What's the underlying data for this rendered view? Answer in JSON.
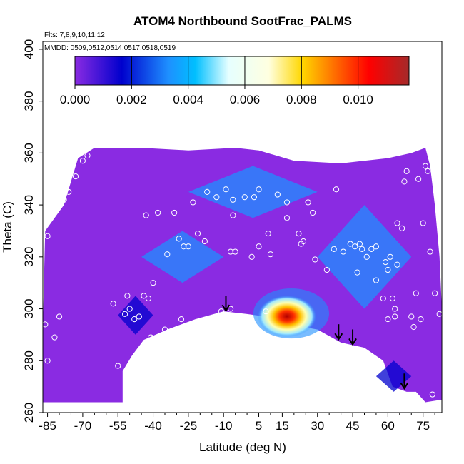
{
  "chart_data": {
    "type": "heatmap",
    "title": "ATOM4 Northbound SootFrac_PALMS",
    "flights_label": "Flts: 7,8,9,10,11,12",
    "dates_label": "MMDD: 0509,0512,0514,0517,0518,0519",
    "xlabel": "Latitude (deg N)",
    "ylabel": "Theta (C)",
    "xlim": [
      -87,
      83
    ],
    "ylim": [
      260,
      403
    ],
    "x_ticks": [
      "-85",
      "-70",
      "-55",
      "-40",
      "-25",
      "-10",
      "5",
      "15",
      "30",
      "45",
      "60",
      "75"
    ],
    "x_tick_values": [
      -85,
      -70,
      -55,
      -40,
      -25,
      -10,
      5,
      15,
      30,
      45,
      60,
      75
    ],
    "y_ticks": [
      "260",
      "280",
      "300",
      "320",
      "340",
      "360",
      "380",
      "400"
    ],
    "y_tick_values": [
      260,
      280,
      300,
      320,
      340,
      360,
      380,
      400
    ],
    "colorbar": {
      "min": 0.0,
      "max": 0.0118,
      "tick_labels": [
        "0.000",
        "0.002",
        "0.004",
        "0.006",
        "0.008",
        "0.010"
      ],
      "tick_values": [
        0.0,
        0.002,
        0.004,
        0.006,
        0.008,
        0.01
      ],
      "colors": [
        "#8a2be2",
        "#0000cd",
        "#1e90ff",
        "#00bfff",
        "#e0ffff",
        "#ffffe0",
        "#ffd700",
        "#ff4500",
        "#ff0000",
        "#a52a2a"
      ]
    },
    "tropopause_arrows_lat": [
      -9,
      39,
      45,
      67
    ],
    "tropopause_arrows_theta": [
      299,
      288,
      286,
      269
    ],
    "background_value": 0.0,
    "blue_patches": [
      {
        "lat": [
          -45,
          -10
        ],
        "theta": [
          310,
          330
        ],
        "value": 0.003
      },
      {
        "lat": [
          -25,
          30
        ],
        "theta": [
          335,
          355
        ],
        "value": 0.0025
      },
      {
        "lat": [
          -55,
          -40
        ],
        "theta": [
          290,
          305
        ],
        "value": 0.0015
      },
      {
        "lat": [
          30,
          70
        ],
        "theta": [
          300,
          340
        ],
        "value": 0.002
      },
      {
        "lat": [
          55,
          70
        ],
        "theta": [
          268,
          280
        ],
        "value": 0.0015
      }
    ],
    "hotspot": {
      "lat": [
        5,
        30
      ],
      "theta": [
        294,
        310
      ],
      "peak_value": 0.011,
      "peak_lat": 17,
      "peak_theta": 296
    },
    "samples": [
      {
        "lat": -86,
        "theta": 294
      },
      {
        "lat": -85,
        "theta": 280
      },
      {
        "lat": -85,
        "theta": 328
      },
      {
        "lat": -82,
        "theta": 289
      },
      {
        "lat": -80,
        "theta": 297
      },
      {
        "lat": -78,
        "theta": 342
      },
      {
        "lat": -76,
        "theta": 345
      },
      {
        "lat": -73,
        "theta": 351
      },
      {
        "lat": -70,
        "theta": 357
      },
      {
        "lat": -68,
        "theta": 359
      },
      {
        "lat": -57,
        "theta": 302
      },
      {
        "lat": -55,
        "theta": 278
      },
      {
        "lat": -52,
        "theta": 298
      },
      {
        "lat": -51,
        "theta": 305
      },
      {
        "lat": -50,
        "theta": 300
      },
      {
        "lat": -48,
        "theta": 296
      },
      {
        "lat": -47,
        "theta": 276
      },
      {
        "lat": -46,
        "theta": 297
      },
      {
        "lat": -45,
        "theta": 280
      },
      {
        "lat": -44,
        "theta": 305
      },
      {
        "lat": -43,
        "theta": 336
      },
      {
        "lat": -42,
        "theta": 304
      },
      {
        "lat": -41,
        "theta": 289
      },
      {
        "lat": -40,
        "theta": 310
      },
      {
        "lat": -38,
        "theta": 337
      },
      {
        "lat": -35,
        "theta": 292
      },
      {
        "lat": -34,
        "theta": 321
      },
      {
        "lat": -31,
        "theta": 337
      },
      {
        "lat": -29,
        "theta": 327
      },
      {
        "lat": -28,
        "theta": 296
      },
      {
        "lat": -27,
        "theta": 324
      },
      {
        "lat": -25,
        "theta": 324
      },
      {
        "lat": -23,
        "theta": 341
      },
      {
        "lat": -21,
        "theta": 329
      },
      {
        "lat": -18,
        "theta": 326
      },
      {
        "lat": -17,
        "theta": 345
      },
      {
        "lat": -13,
        "theta": 343
      },
      {
        "lat": -11,
        "theta": 299
      },
      {
        "lat": -9,
        "theta": 346
      },
      {
        "lat": -7,
        "theta": 300
      },
      {
        "lat": -7,
        "theta": 322
      },
      {
        "lat": -6,
        "theta": 336
      },
      {
        "lat": -6,
        "theta": 342
      },
      {
        "lat": -5,
        "theta": 322
      },
      {
        "lat": -1,
        "theta": 343
      },
      {
        "lat": 2,
        "theta": 320
      },
      {
        "lat": 3,
        "theta": 343
      },
      {
        "lat": 5,
        "theta": 324
      },
      {
        "lat": 5,
        "theta": 346
      },
      {
        "lat": 8,
        "theta": 299
      },
      {
        "lat": 9,
        "theta": 329
      },
      {
        "lat": 10,
        "theta": 321
      },
      {
        "lat": 13,
        "theta": 344
      },
      {
        "lat": 17,
        "theta": 335
      },
      {
        "lat": 17,
        "theta": 341
      },
      {
        "lat": 22,
        "theta": 329
      },
      {
        "lat": 23,
        "theta": 325
      },
      {
        "lat": 24,
        "theta": 326
      },
      {
        "lat": 26,
        "theta": 341
      },
      {
        "lat": 28,
        "theta": 337
      },
      {
        "lat": 29,
        "theta": 319
      },
      {
        "lat": 34,
        "theta": 315
      },
      {
        "lat": 37,
        "theta": 323
      },
      {
        "lat": 38,
        "theta": 346
      },
      {
        "lat": 41,
        "theta": 322
      },
      {
        "lat": 44,
        "theta": 325
      },
      {
        "lat": 46,
        "theta": 324
      },
      {
        "lat": 47,
        "theta": 314
      },
      {
        "lat": 48,
        "theta": 325
      },
      {
        "lat": 49,
        "theta": 323
      },
      {
        "lat": 51,
        "theta": 320
      },
      {
        "lat": 53,
        "theta": 323
      },
      {
        "lat": 55,
        "theta": 311
      },
      {
        "lat": 55,
        "theta": 324
      },
      {
        "lat": 58,
        "theta": 304
      },
      {
        "lat": 59,
        "theta": 318
      },
      {
        "lat": 60,
        "theta": 296
      },
      {
        "lat": 60,
        "theta": 315
      },
      {
        "lat": 61,
        "theta": 320
      },
      {
        "lat": 62,
        "theta": 304
      },
      {
        "lat": 63,
        "theta": 297
      },
      {
        "lat": 63,
        "theta": 300
      },
      {
        "lat": 64,
        "theta": 317
      },
      {
        "lat": 64,
        "theta": 333
      },
      {
        "lat": 66,
        "theta": 331
      },
      {
        "lat": 67,
        "theta": 349
      },
      {
        "lat": 68,
        "theta": 353
      },
      {
        "lat": 70,
        "theta": 297
      },
      {
        "lat": 71,
        "theta": 293
      },
      {
        "lat": 72,
        "theta": 306
      },
      {
        "lat": 73,
        "theta": 350
      },
      {
        "lat": 74,
        "theta": 296
      },
      {
        "lat": 75,
        "theta": 333
      },
      {
        "lat": 76,
        "theta": 355
      },
      {
        "lat": 77,
        "theta": 353
      },
      {
        "lat": 78,
        "theta": 322
      },
      {
        "lat": 79,
        "theta": 267
      },
      {
        "lat": 80,
        "theta": 306
      },
      {
        "lat": 82,
        "theta": 298
      }
    ]
  }
}
